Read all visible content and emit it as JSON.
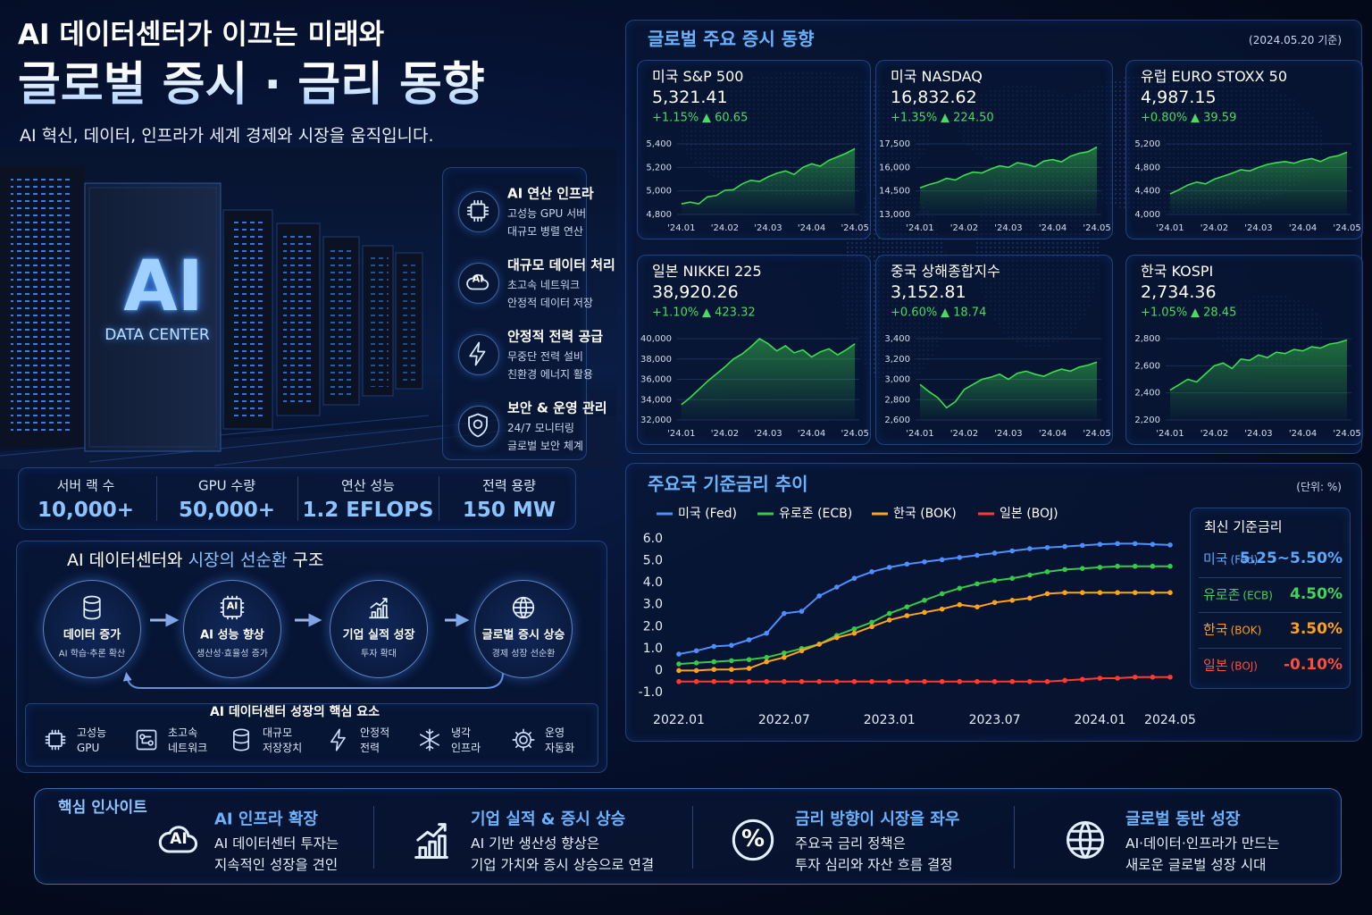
{
  "header": {
    "title_line1": "AI 데이터센터가 이끄는 미래와",
    "title_line2": "글로벌 증시 · 금리 동향",
    "subtitle": "AI 혁신, 데이터, 인프라가 세계 경제와 시장을 움직입니다."
  },
  "datacenter": {
    "logo": "AI",
    "caption": "DATA CENTER"
  },
  "features": [
    {
      "title": "AI 연산 인프라",
      "lines": [
        "고성능 GPU 서버",
        "대규모 병렬 연산"
      ]
    },
    {
      "title": "대규모 데이터 처리",
      "icon_text": "AI",
      "lines": [
        "초고속 네트워크",
        "안정적 데이터 저장"
      ]
    },
    {
      "title": "안정적 전력 공급",
      "lines": [
        "무중단 전력 설비",
        "친환경 에너지 활용"
      ]
    },
    {
      "title": "보안 & 운영 관리",
      "lines": [
        "24/7 모니터링",
        "글로벌 보안 체계"
      ]
    }
  ],
  "stats": [
    {
      "label": "서버 랙 수",
      "value": "10,000+"
    },
    {
      "label": "GPU 수량",
      "value": "50,000+"
    },
    {
      "label": "연산 성능",
      "value": "1.2 EFLOPS"
    },
    {
      "label": "전력 용량",
      "value": "150 MW"
    }
  ],
  "cycle": {
    "title_parts": [
      "AI 데이터센터와 ",
      "시장의 선순환",
      " 구조"
    ],
    "nodes": [
      {
        "title": "데이터 증가",
        "sub": "AI 학습·추론 확산"
      },
      {
        "title": "AI 성능 향상",
        "sub": "생산성·효율성 증가",
        "icon_text": "AI"
      },
      {
        "title": "기업 실적 성장",
        "sub": "투자 확대"
      },
      {
        "title": "글로벌 증시 상승",
        "sub": "경제 성장 선순환"
      }
    ]
  },
  "key_elements": {
    "title": "AI 데이터센터 성장의 핵심 요소",
    "items": [
      [
        "고성능",
        "GPU"
      ],
      [
        "초고속",
        "네트워크"
      ],
      [
        "대규모",
        "저장장치"
      ],
      [
        "안정적",
        "전력"
      ],
      [
        "냉각",
        "인프라"
      ],
      [
        "운영",
        "자동화"
      ]
    ]
  },
  "markets": {
    "title": "글로벌 주요 증시 동향",
    "as_of": "(2024.05.20 기준)"
  },
  "rates_panel": {
    "title": "최신 기준금리",
    "rows": [
      {
        "name": "미국",
        "tag": "(Fed)",
        "value": "5.25~5.50%"
      },
      {
        "name": "유로존",
        "tag": "(ECB)",
        "value": "4.50%"
      },
      {
        "name": "한국",
        "tag": "(BOK)",
        "value": "3.50%"
      },
      {
        "name": "일본",
        "tag": "(BOJ)",
        "value": "-0.10%"
      }
    ]
  },
  "insights": {
    "title": "핵심 인사이트",
    "items": [
      {
        "title": "AI 인프라 확장",
        "icon_text": "AI",
        "lines": [
          "AI 데이터센터 투자는",
          "지속적인 성장을 견인"
        ]
      },
      {
        "title": "기업 실적 & 증시 상승",
        "lines": [
          "AI 기반 생산성 향상은",
          "기업 가치와 증시 상승으로 연결"
        ]
      },
      {
        "title": "금리 방향이 시장을 좌우",
        "icon_text": "%",
        "lines": [
          "주요국 금리 정책은",
          "투자 심리와 자산 흐름 결정"
        ]
      },
      {
        "title": "글로벌 동반 성장",
        "lines": [
          "AI·데이터·인프라가 만드는",
          "새로운 글로벌 성장 시대"
        ]
      }
    ]
  },
  "chart_data": [
    {
      "type": "line",
      "title": "미국 S&P 500",
      "value_text": "5,321.41",
      "change_pct": "+1.15%",
      "change_abs": "▲ 60.65",
      "color": "#3ddc4f",
      "grid": true,
      "x": [
        1,
        1.2,
        1.4,
        1.6,
        1.8,
        2,
        2.2,
        2.4,
        2.6,
        2.8,
        3,
        3.2,
        3.4,
        3.6,
        3.8,
        4,
        4.2,
        4.4,
        4.6,
        4.8,
        5
      ],
      "values": [
        4890,
        4905,
        4890,
        4950,
        4960,
        5005,
        5010,
        5060,
        5090,
        5080,
        5120,
        5150,
        5170,
        5140,
        5200,
        5230,
        5210,
        5260,
        5290,
        5320,
        5360
      ],
      "xlim": [
        0.9,
        5.1
      ],
      "xticks": [
        {
          "value": 1,
          "label": "'24.01"
        },
        {
          "value": 2,
          "label": "'24.02"
        },
        {
          "value": 3,
          "label": "'24.03"
        },
        {
          "value": 4,
          "label": "'24.04"
        },
        {
          "value": 5,
          "label": "'24.05"
        }
      ],
      "ylim": [
        4800,
        5400
      ],
      "yticks": [
        {
          "value": 4800,
          "label": "4,800"
        },
        {
          "value": 5000,
          "label": "5,000"
        },
        {
          "value": 5200,
          "label": "5,200"
        },
        {
          "value": 5400,
          "label": "5,400"
        }
      ]
    },
    {
      "type": "line",
      "title": "미국 NASDAQ",
      "value_text": "16,832.62",
      "change_pct": "+1.35%",
      "change_abs": "▲ 224.50",
      "color": "#3ddc4f",
      "grid": true,
      "x": [
        1,
        1.2,
        1.4,
        1.6,
        1.8,
        2,
        2.2,
        2.4,
        2.6,
        2.8,
        3,
        3.2,
        3.4,
        3.6,
        3.8,
        4,
        4.2,
        4.4,
        4.6,
        4.8,
        5
      ],
      "values": [
        14700,
        14900,
        15050,
        15300,
        15200,
        15500,
        15700,
        15650,
        15900,
        16100,
        16000,
        16300,
        16200,
        16050,
        16400,
        16500,
        16350,
        16700,
        16900,
        17000,
        17300
      ],
      "xlim": [
        0.9,
        5.1
      ],
      "xticks": [
        {
          "value": 1,
          "label": "'24.01"
        },
        {
          "value": 2,
          "label": "'24.02"
        },
        {
          "value": 3,
          "label": "'24.03"
        },
        {
          "value": 4,
          "label": "'24.04"
        },
        {
          "value": 5,
          "label": "'24.05"
        }
      ],
      "ylim": [
        13000,
        17500
      ],
      "yticks": [
        {
          "value": 13000,
          "label": "13,000"
        },
        {
          "value": 14500,
          "label": "14,500"
        },
        {
          "value": 16000,
          "label": "16,000"
        },
        {
          "value": 17500,
          "label": "17,500"
        }
      ]
    },
    {
      "type": "line",
      "title": "유럽 EURO STOXX 50",
      "value_text": "4,987.15",
      "change_pct": "+0.80%",
      "change_abs": "▲ 39.59",
      "color": "#3ddc4f",
      "grid": true,
      "x": [
        1,
        1.2,
        1.4,
        1.6,
        1.8,
        2,
        2.2,
        2.4,
        2.6,
        2.8,
        3,
        3.2,
        3.4,
        3.6,
        3.8,
        4,
        4.2,
        4.4,
        4.6,
        4.8,
        5
      ],
      "values": [
        4350,
        4420,
        4500,
        4550,
        4520,
        4600,
        4650,
        4700,
        4760,
        4740,
        4800,
        4850,
        4880,
        4900,
        4870,
        4920,
        4950,
        4900,
        4970,
        5000,
        5060
      ],
      "xlim": [
        0.9,
        5.1
      ],
      "xticks": [
        {
          "value": 1,
          "label": "'24.01"
        },
        {
          "value": 2,
          "label": "'24.02"
        },
        {
          "value": 3,
          "label": "'24.03"
        },
        {
          "value": 4,
          "label": "'24.04"
        },
        {
          "value": 5,
          "label": "'24.05"
        }
      ],
      "ylim": [
        4000,
        5200
      ],
      "yticks": [
        {
          "value": 4000,
          "label": "4,000"
        },
        {
          "value": 4400,
          "label": "4,400"
        },
        {
          "value": 4800,
          "label": "4,800"
        },
        {
          "value": 5200,
          "label": "5,200"
        }
      ]
    },
    {
      "type": "line",
      "title": "일본 NIKKEI 225",
      "value_text": "38,920.26",
      "change_pct": "+1.10%",
      "change_abs": "▲ 423.32",
      "color": "#3ddc4f",
      "grid": true,
      "x": [
        1,
        1.2,
        1.4,
        1.6,
        1.8,
        2,
        2.2,
        2.4,
        2.6,
        2.8,
        3,
        3.2,
        3.4,
        3.6,
        3.8,
        4,
        4.2,
        4.4,
        4.6,
        4.8,
        5
      ],
      "values": [
        33500,
        34200,
        35000,
        35800,
        36500,
        37200,
        38000,
        38500,
        39200,
        40000,
        39500,
        38800,
        39300,
        38600,
        38900,
        38200,
        38700,
        39000,
        38400,
        38900,
        39500
      ],
      "xlim": [
        0.9,
        5.1
      ],
      "xticks": [
        {
          "value": 1,
          "label": "'24.01"
        },
        {
          "value": 2,
          "label": "'24.02"
        },
        {
          "value": 3,
          "label": "'24.03"
        },
        {
          "value": 4,
          "label": "'24.04"
        },
        {
          "value": 5,
          "label": "'24.05"
        }
      ],
      "ylim": [
        32000,
        40000
      ],
      "yticks": [
        {
          "value": 32000,
          "label": "32,000"
        },
        {
          "value": 34000,
          "label": "34,000"
        },
        {
          "value": 36000,
          "label": "36,000"
        },
        {
          "value": 38000,
          "label": "38,000"
        },
        {
          "value": 40000,
          "label": "40,000"
        }
      ]
    },
    {
      "type": "line",
      "title": "중국 상해종합지수",
      "value_text": "3,152.81",
      "change_pct": "+0.60%",
      "change_abs": "▲ 18.74",
      "color": "#3ddc4f",
      "grid": true,
      "x": [
        1,
        1.2,
        1.4,
        1.6,
        1.8,
        2,
        2.2,
        2.4,
        2.6,
        2.8,
        3,
        3.2,
        3.4,
        3.6,
        3.8,
        4,
        4.2,
        4.4,
        4.6,
        4.8,
        5
      ],
      "values": [
        2950,
        2880,
        2820,
        2720,
        2780,
        2900,
        2950,
        3000,
        3020,
        3050,
        3000,
        3060,
        3080,
        3050,
        3030,
        3070,
        3100,
        3080,
        3120,
        3140,
        3170
      ],
      "xlim": [
        0.9,
        5.1
      ],
      "xticks": [
        {
          "value": 1,
          "label": "'24.01"
        },
        {
          "value": 2,
          "label": "'24.02"
        },
        {
          "value": 3,
          "label": "'24.03"
        },
        {
          "value": 4,
          "label": "'24.04"
        },
        {
          "value": 5,
          "label": "'24.05"
        }
      ],
      "ylim": [
        2600,
        3400
      ],
      "yticks": [
        {
          "value": 2600,
          "label": "2,600"
        },
        {
          "value": 2800,
          "label": "2,800"
        },
        {
          "value": 3000,
          "label": "3,000"
        },
        {
          "value": 3200,
          "label": "3,200"
        },
        {
          "value": 3400,
          "label": "3,400"
        }
      ]
    },
    {
      "type": "line",
      "title": "한국 KOSPI",
      "value_text": "2,734.36",
      "change_pct": "+1.05%",
      "change_abs": "▲ 28.45",
      "color": "#3ddc4f",
      "grid": true,
      "x": [
        1,
        1.2,
        1.4,
        1.6,
        1.8,
        2,
        2.2,
        2.4,
        2.6,
        2.8,
        3,
        3.2,
        3.4,
        3.6,
        3.8,
        4,
        4.2,
        4.4,
        4.6,
        4.8,
        5
      ],
      "values": [
        2420,
        2460,
        2500,
        2480,
        2540,
        2600,
        2620,
        2580,
        2650,
        2640,
        2680,
        2660,
        2700,
        2690,
        2720,
        2710,
        2740,
        2730,
        2760,
        2770,
        2790
      ],
      "xlim": [
        0.9,
        5.1
      ],
      "xticks": [
        {
          "value": 1,
          "label": "'24.01"
        },
        {
          "value": 2,
          "label": "'24.02"
        },
        {
          "value": 3,
          "label": "'24.03"
        },
        {
          "value": 4,
          "label": "'24.04"
        },
        {
          "value": 5,
          "label": "'24.05"
        }
      ],
      "ylim": [
        2200,
        2800
      ],
      "yticks": [
        {
          "value": 2200,
          "label": "2,200"
        },
        {
          "value": 2400,
          "label": "2,400"
        },
        {
          "value": 2600,
          "label": "2,600"
        },
        {
          "value": 2800,
          "label": "2,800"
        }
      ]
    },
    {
      "type": "line",
      "title": "주요국 기준금리 추이",
      "unit": "(단위: %)",
      "legend": "top",
      "grid": false,
      "categories": [
        "2022.01",
        null,
        null,
        null,
        null,
        null,
        "2022.07",
        null,
        null,
        null,
        null,
        null,
        "2023.01",
        null,
        null,
        null,
        null,
        null,
        "2023.07",
        null,
        null,
        null,
        null,
        null,
        "2024.01",
        null,
        null,
        null,
        "2024.05"
      ],
      "series": [
        {
          "name": "미국 (Fed)",
          "color": "#4d8fff",
          "values": [
            0.75,
            0.9,
            1.1,
            1.15,
            1.4,
            1.7,
            2.6,
            2.7,
            3.4,
            3.8,
            4.2,
            4.5,
            4.7,
            4.85,
            4.95,
            5.05,
            5.15,
            5.25,
            5.35,
            5.45,
            5.55,
            5.6,
            5.65,
            5.7,
            5.75,
            5.78,
            5.78,
            5.75,
            5.72
          ]
        },
        {
          "name": "유로존 (ECB)",
          "color": "#36c94a",
          "values": [
            0.3,
            0.35,
            0.4,
            0.45,
            0.5,
            0.6,
            0.8,
            1.0,
            1.2,
            1.6,
            1.9,
            2.2,
            2.6,
            2.9,
            3.2,
            3.5,
            3.75,
            3.95,
            4.1,
            4.2,
            4.35,
            4.5,
            4.6,
            4.65,
            4.7,
            4.75,
            4.75,
            4.75,
            4.75
          ]
        },
        {
          "name": "한국 (BOK)",
          "color": "#ffa31a",
          "values": [
            0,
            0,
            0.05,
            0.05,
            0.1,
            0.4,
            0.6,
            0.9,
            1.2,
            1.5,
            1.7,
            2.0,
            2.3,
            2.5,
            2.65,
            2.8,
            3.0,
            2.9,
            3.1,
            3.2,
            3.3,
            3.5,
            3.55,
            3.55,
            3.55,
            3.55,
            3.55,
            3.55,
            3.55
          ]
        },
        {
          "name": "일본 (BOJ)",
          "color": "#ff3b2f",
          "values": [
            -0.5,
            -0.5,
            -0.5,
            -0.5,
            -0.5,
            -0.5,
            -0.5,
            -0.5,
            -0.5,
            -0.5,
            -0.5,
            -0.5,
            -0.5,
            -0.5,
            -0.5,
            -0.5,
            -0.5,
            -0.5,
            -0.5,
            -0.5,
            -0.5,
            -0.5,
            -0.45,
            -0.4,
            -0.35,
            -0.35,
            -0.3,
            -0.3,
            -0.3
          ]
        }
      ],
      "ylim": [
        -1,
        6
      ],
      "yticks": [
        {
          "value": 6,
          "label": "6.0"
        },
        {
          "value": 5,
          "label": "5.0"
        },
        {
          "value": 4,
          "label": "4.0"
        },
        {
          "value": 3,
          "label": "3.0"
        },
        {
          "value": 2,
          "label": "2.0"
        },
        {
          "value": 1,
          "label": "1.0"
        },
        0,
        {
          "value": -1,
          "label": "-1.0"
        }
      ]
    }
  ]
}
